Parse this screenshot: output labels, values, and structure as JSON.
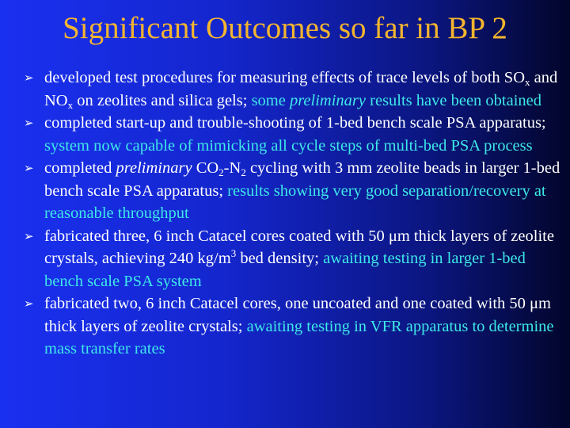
{
  "slide": {
    "title": "Significant Outcomes so far in BP 2",
    "marker": "➢"
  },
  "colors": {
    "title": "#f5b52e",
    "body_text": "#ffffff",
    "highlight_text": "#3ee8e8",
    "background_left": "#1a30f0",
    "background_right": "#02052a"
  },
  "bullets": [
    {
      "t1": "developed test procedures for measuring effects of trace levels of both SO",
      "sub1": "x",
      "t2": " and NO",
      "sub2": "x",
      "t3": " on zeolites and silica gels; ",
      "hl1": "some ",
      "hl_it": "preliminary",
      "hl2": " results have been obtained"
    },
    {
      "t1": "completed start-up and trouble-shooting of 1-bed bench scale PSA apparatus; ",
      "hl": "system now capable of mimicking all cycle steps of multi-bed PSA process"
    },
    {
      "t1": "completed ",
      "it": "preliminary",
      "t2": " CO",
      "sub1": "2",
      "t3": "-N",
      "sub2": "2",
      "t4": " cycling with 3 mm zeolite beads in larger 1-bed bench scale PSA apparatus; ",
      "hl": "results showing very good separation/recovery at reasonable throughput"
    },
    {
      "t1": "fabricated three, 6 inch Catacel cores coated with 50 μm thick layers of zeolite crystals, achieving 240 kg/m",
      "sup": "3",
      "t2": " bed density; ",
      "hl": "awaiting testing in larger 1-bed bench scale PSA system"
    },
    {
      "t1": "fabricated two, 6 inch Catacel cores, one uncoated and one coated with 50 μm thick layers of zeolite crystals; ",
      "hl": "awaiting testing in VFR apparatus to determine mass transfer rates"
    }
  ]
}
